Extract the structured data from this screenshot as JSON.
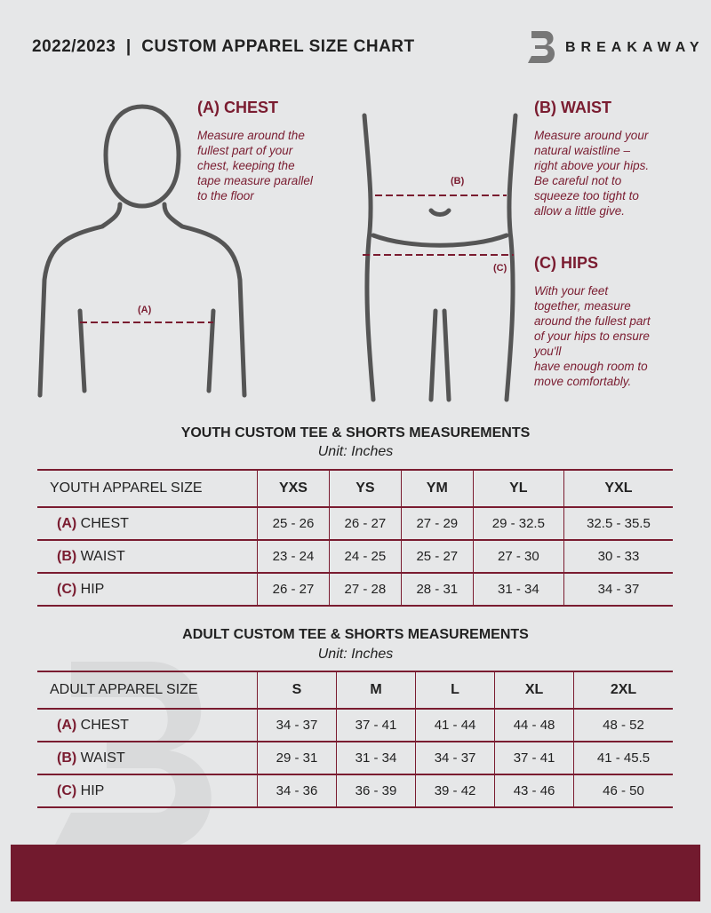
{
  "header": {
    "title": "2022/2023  |  CUSTOM APPAREL SIZE CHART",
    "brand": "BREAKAWAY",
    "watermark": "B"
  },
  "colors": {
    "accent": "#7a1c30",
    "background": "#e6e7e8"
  },
  "guide": {
    "chest": {
      "heading": "(A) CHEST",
      "text": [
        "Measure around the",
        "fullest part of your",
        "chest, keeping the",
        "tape measure parallel",
        "to the floor"
      ],
      "marker": "(A)"
    },
    "waist": {
      "heading": "(B) WAIST",
      "text": [
        "Measure around your",
        "natural waistline –",
        "right above your hips.",
        "Be careful not to",
        "squeeze too tight to",
        "allow a little give."
      ],
      "marker": "(B)"
    },
    "hips": {
      "heading": "(C) HIPS",
      "text": [
        "With your feet",
        "together, measure",
        "around the fullest part",
        "of your hips to ensure",
        "you'll",
        "have enough room to",
        "move comfortably."
      ],
      "marker": "(C)"
    }
  },
  "youth": {
    "title": "YOUTH CUSTOM TEE & SHORTS MEASUREMENTS",
    "unit": "Unit: Inches",
    "header": "YOUTH APPAREL SIZE",
    "sizes": [
      "YXS",
      "YS",
      "YM",
      "YL",
      "YXL"
    ],
    "rows": [
      {
        "letter": "(A)",
        "name": "CHEST",
        "values": [
          "25 - 26",
          "26 - 27",
          "27 - 29",
          "29 - 32.5",
          "32.5 - 35.5"
        ]
      },
      {
        "letter": "(B)",
        "name": "WAIST",
        "values": [
          "23 - 24",
          "24 - 25",
          "25 - 27",
          "27 - 30",
          "30 - 33"
        ]
      },
      {
        "letter": "(C)",
        "name": "HIP",
        "values": [
          "26 - 27",
          "27 - 28",
          "28 - 31",
          "31 - 34",
          "34 - 37"
        ]
      }
    ]
  },
  "adult": {
    "title": "ADULT CUSTOM TEE & SHORTS MEASUREMENTS",
    "unit": "Unit: Inches",
    "header": "ADULT APPAREL SIZE",
    "sizes": [
      "S",
      "M",
      "L",
      "XL",
      "2XL"
    ],
    "rows": [
      {
        "letter": "(A)",
        "name": "CHEST",
        "values": [
          "34 - 37",
          "37 - 41",
          "41 - 44",
          "44 - 48",
          "48 - 52"
        ]
      },
      {
        "letter": "(B)",
        "name": "WAIST",
        "values": [
          "29 - 31",
          "31 - 34",
          "34 - 37",
          "37 - 41",
          "41 - 45.5"
        ]
      },
      {
        "letter": "(C)",
        "name": "HIP",
        "values": [
          "34 - 36",
          "36 - 39",
          "39 - 42",
          "43 - 46",
          "46 - 50"
        ]
      }
    ]
  }
}
